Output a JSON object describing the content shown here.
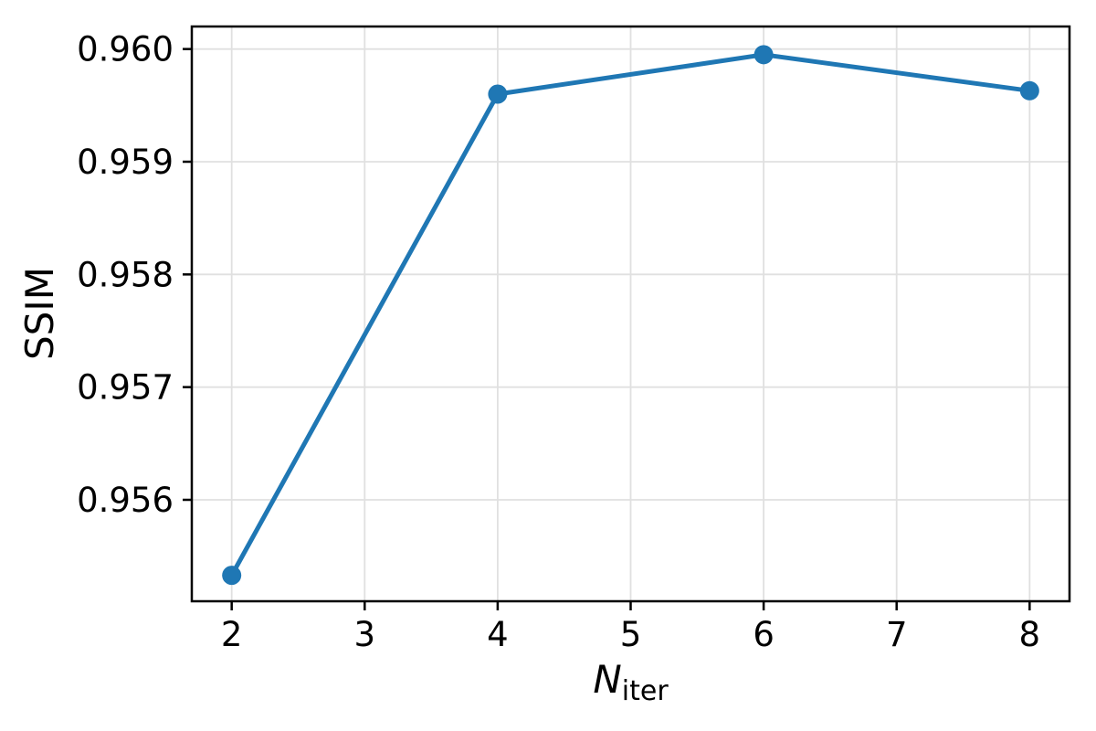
{
  "chart_data": {
    "type": "line",
    "title": "",
    "ylabel": "SSIM",
    "xlabel_main": "N",
    "xlabel_sub": "iter",
    "x": [
      2,
      4,
      6,
      8
    ],
    "y": [
      0.95533,
      0.9596,
      0.95995,
      0.95963
    ],
    "xticks": [
      2,
      3,
      4,
      5,
      6,
      7,
      8
    ],
    "xtick_labels": [
      "2",
      "3",
      "4",
      "5",
      "6",
      "7",
      "8"
    ],
    "yticks": [
      0.956,
      0.957,
      0.958,
      0.959,
      0.96
    ],
    "ytick_labels": [
      "0.956",
      "0.957",
      "0.958",
      "0.959",
      "0.960"
    ],
    "xlim": [
      1.7,
      8.3
    ],
    "ylim": [
      0.9551,
      0.9602
    ],
    "grid": true,
    "legend_position": "none",
    "line_color": "#1f77b4",
    "marker": "circle",
    "grid_color": "#e0e0e0",
    "spine_color": "#000000"
  }
}
